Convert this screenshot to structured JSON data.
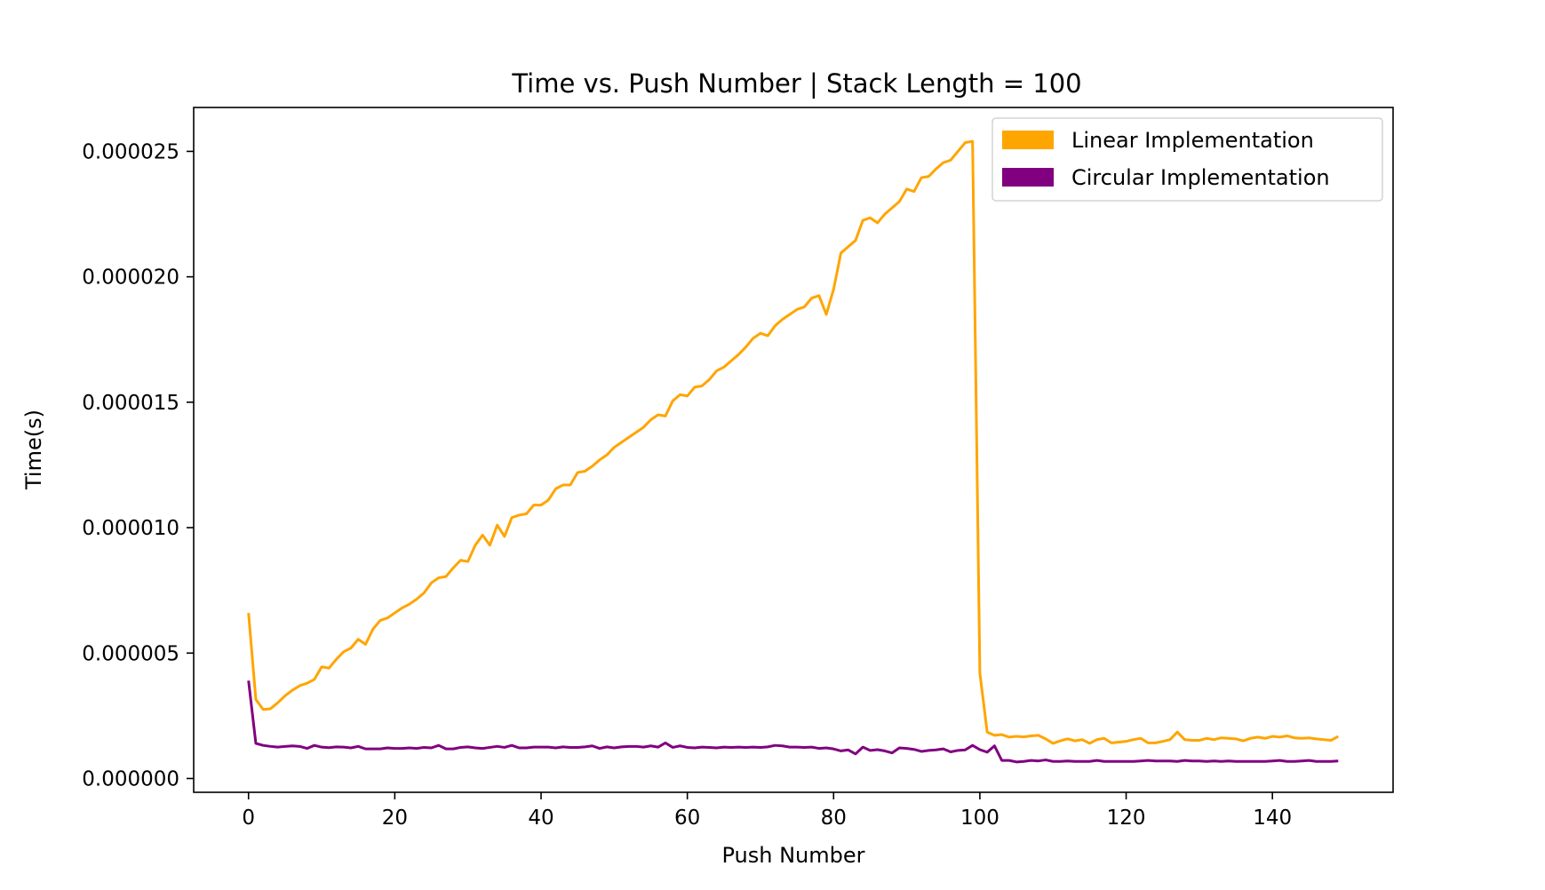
{
  "chart_data": {
    "type": "line",
    "title": "Time vs. Push Number | Stack Length = 100",
    "xlabel": "Push Number",
    "ylabel": "Time(s)",
    "xlim": [
      -7.5,
      156.5
    ],
    "ylim": [
      -5.5e-07,
      2.675e-05
    ],
    "xticks": [
      0,
      20,
      40,
      60,
      80,
      100,
      120,
      140
    ],
    "xtick_labels": [
      "0",
      "20",
      "40",
      "60",
      "80",
      "100",
      "120",
      "140"
    ],
    "yticks": [
      0,
      5e-06,
      1e-05,
      1.5e-05,
      2e-05,
      2.5e-05
    ],
    "ytick_labels": [
      "0.000000",
      "0.000005",
      "0.000010",
      "0.000015",
      "0.000020",
      "0.000025"
    ],
    "grid": false,
    "legend_position": "upper-right",
    "series": [
      {
        "name": "Linear Implementation",
        "color": "#FFA500",
        "values": [
          6.6e-06,
          3.15e-06,
          2.75e-06,
          2.78e-06,
          3.02e-06,
          3.3e-06,
          3.52e-06,
          3.7e-06,
          3.8e-06,
          3.95e-06,
          4.45e-06,
          4.4e-06,
          4.75e-06,
          5.05e-06,
          5.2e-06,
          5.55e-06,
          5.35e-06,
          5.95e-06,
          6.3e-06,
          6.4e-06,
          6.6e-06,
          6.8e-06,
          6.95e-06,
          7.15e-06,
          7.4e-06,
          7.8e-06,
          8e-06,
          8.05e-06,
          8.4e-06,
          8.7e-06,
          8.65e-06,
          9.3e-06,
          9.7e-06,
          9.3e-06,
          1.01e-05,
          9.65e-06,
          1.04e-05,
          1.05e-05,
          1.055e-05,
          1.09e-05,
          1.09e-05,
          1.11e-05,
          1.155e-05,
          1.17e-05,
          1.17e-05,
          1.22e-05,
          1.225e-05,
          1.245e-05,
          1.27e-05,
          1.29e-05,
          1.32e-05,
          1.34e-05,
          1.36e-05,
          1.38e-05,
          1.4e-05,
          1.43e-05,
          1.45e-05,
          1.445e-05,
          1.505e-05,
          1.53e-05,
          1.525e-05,
          1.56e-05,
          1.565e-05,
          1.59e-05,
          1.625e-05,
          1.64e-05,
          1.665e-05,
          1.69e-05,
          1.72e-05,
          1.755e-05,
          1.775e-05,
          1.765e-05,
          1.805e-05,
          1.83e-05,
          1.85e-05,
          1.87e-05,
          1.88e-05,
          1.915e-05,
          1.925e-05,
          1.85e-05,
          1.95e-05,
          2.095e-05,
          2.12e-05,
          2.145e-05,
          2.225e-05,
          2.235e-05,
          2.215e-05,
          2.25e-05,
          2.275e-05,
          2.3e-05,
          2.35e-05,
          2.34e-05,
          2.395e-05,
          2.4e-05,
          2.43e-05,
          2.455e-05,
          2.465e-05,
          2.5e-05,
          2.535e-05,
          2.54e-05,
          4.2e-06,
          1.85e-06,
          1.72e-06,
          1.75e-06,
          1.65e-06,
          1.68e-06,
          1.66e-06,
          1.7e-06,
          1.72e-06,
          1.58e-06,
          1.4e-06,
          1.5e-06,
          1.58e-06,
          1.5e-06,
          1.55e-06,
          1.4e-06,
          1.55e-06,
          1.6e-06,
          1.42e-06,
          1.45e-06,
          1.48e-06,
          1.55e-06,
          1.6e-06,
          1.42e-06,
          1.42e-06,
          1.48e-06,
          1.55e-06,
          1.85e-06,
          1.55e-06,
          1.52e-06,
          1.52e-06,
          1.6e-06,
          1.55e-06,
          1.62e-06,
          1.6e-06,
          1.58e-06,
          1.5e-06,
          1.6e-06,
          1.65e-06,
          1.6e-06,
          1.68e-06,
          1.65e-06,
          1.7e-06,
          1.62e-06,
          1.6e-06,
          1.62e-06,
          1.58e-06,
          1.55e-06,
          1.52e-06,
          1.68e-06
        ]
      },
      {
        "name": "Circular Implementation",
        "color": "#800080",
        "values": [
          3.9e-06,
          1.4e-06,
          1.32e-06,
          1.28e-06,
          1.25e-06,
          1.28e-06,
          1.3e-06,
          1.28e-06,
          1.2e-06,
          1.32e-06,
          1.25e-06,
          1.23e-06,
          1.26e-06,
          1.25e-06,
          1.22e-06,
          1.28e-06,
          1.18e-06,
          1.18e-06,
          1.18e-06,
          1.22e-06,
          1.2e-06,
          1.2e-06,
          1.22e-06,
          1.2e-06,
          1.24e-06,
          1.22e-06,
          1.32e-06,
          1.18e-06,
          1.18e-06,
          1.24e-06,
          1.26e-06,
          1.22e-06,
          1.2e-06,
          1.24e-06,
          1.28e-06,
          1.24e-06,
          1.32e-06,
          1.22e-06,
          1.22e-06,
          1.25e-06,
          1.25e-06,
          1.25e-06,
          1.22e-06,
          1.26e-06,
          1.24e-06,
          1.24e-06,
          1.26e-06,
          1.3e-06,
          1.2e-06,
          1.26e-06,
          1.22e-06,
          1.26e-06,
          1.28e-06,
          1.28e-06,
          1.25e-06,
          1.3e-06,
          1.25e-06,
          1.42e-06,
          1.24e-06,
          1.3e-06,
          1.24e-06,
          1.22e-06,
          1.25e-06,
          1.24e-06,
          1.22e-06,
          1.25e-06,
          1.24e-06,
          1.25e-06,
          1.24e-06,
          1.25e-06,
          1.24e-06,
          1.26e-06,
          1.32e-06,
          1.3e-06,
          1.25e-06,
          1.25e-06,
          1.24e-06,
          1.25e-06,
          1.2e-06,
          1.22e-06,
          1.18e-06,
          1.1e-06,
          1.14e-06,
          9.8e-07,
          1.25e-06,
          1.12e-06,
          1.15e-06,
          1.1e-06,
          1.02e-06,
          1.22e-06,
          1.2e-06,
          1.16e-06,
          1.08e-06,
          1.12e-06,
          1.14e-06,
          1.18e-06,
          1.06e-06,
          1.12e-06,
          1.14e-06,
          1.32e-06,
          1.15e-06,
          1.05e-06,
          1.3e-06,
          7.2e-07,
          7.2e-07,
          6.6e-07,
          6.8e-07,
          7.2e-07,
          7e-07,
          7.4e-07,
          6.8e-07,
          6.8e-07,
          7e-07,
          6.8e-07,
          6.8e-07,
          6.8e-07,
          7.2e-07,
          6.8e-07,
          6.8e-07,
          6.8e-07,
          6.8e-07,
          6.8e-07,
          7e-07,
          7.2e-07,
          7e-07,
          7e-07,
          7e-07,
          6.8e-07,
          7.2e-07,
          7e-07,
          7e-07,
          6.8e-07,
          7e-07,
          6.8e-07,
          7e-07,
          6.8e-07,
          6.8e-07,
          6.8e-07,
          6.8e-07,
          6.8e-07,
          7e-07,
          7.2e-07,
          6.8e-07,
          6.8e-07,
          7e-07,
          7.2e-07,
          6.8e-07,
          6.8e-07,
          6.8e-07,
          7e-07
        ]
      }
    ]
  }
}
